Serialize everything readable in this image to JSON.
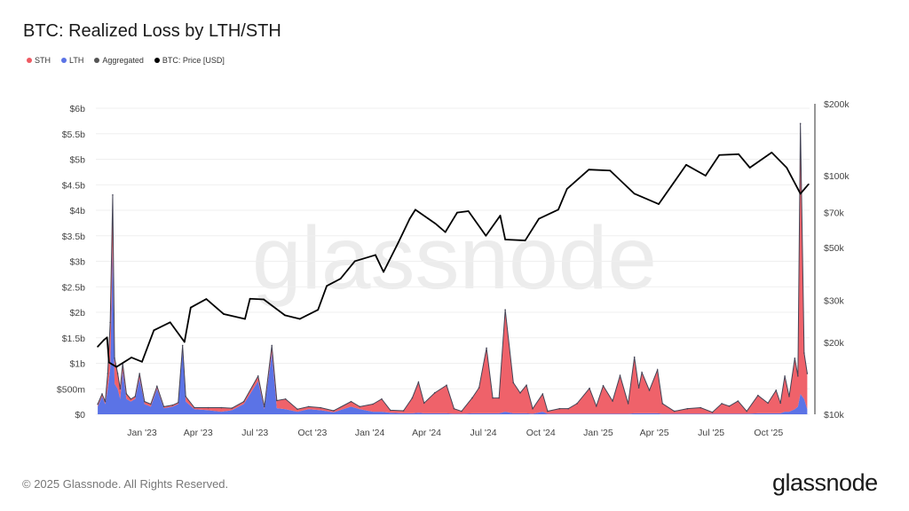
{
  "title": "BTC: Realized Loss by LTH/STH",
  "legend": [
    {
      "label": "STH",
      "color": "#ee5a62"
    },
    {
      "label": "LTH",
      "color": "#5b73e6"
    },
    {
      "label": "Aggregated",
      "color": "#555555"
    },
    {
      "label": "BTC: Price [USD]",
      "color": "#000000"
    }
  ],
  "watermark": "glassnode",
  "footer": "© 2025 Glassnode. All Rights Reserved.",
  "logo": "glassnode",
  "chart_data": {
    "type": "area",
    "title": "BTC: Realized Loss by LTH/STH",
    "y_left": {
      "ticks": [
        "$0",
        "$500m",
        "$1b",
        "$1.5b",
        "$2b",
        "$2.5b",
        "$3b",
        "$3.5b",
        "$4b",
        "$4.5b",
        "$5b",
        "$5.5b",
        "$6b"
      ],
      "unit": "USD billions",
      "range": [
        0,
        6
      ],
      "scale": "linear"
    },
    "y_right": {
      "ticks": [
        "$10k",
        "$20k",
        "$30k",
        "$50k",
        "$70k",
        "$100k",
        "$200k"
      ],
      "tick_values": [
        10000,
        20000,
        30000,
        50000,
        70000,
        100000,
        200000
      ],
      "range": [
        10000,
        200000
      ],
      "scale": "log"
    },
    "x_ticks": [
      {
        "label": "Jan '23",
        "date": "2023-01-01"
      },
      {
        "label": "Apr '23",
        "date": "2023-04-01"
      },
      {
        "label": "Jul '23",
        "date": "2023-07-01"
      },
      {
        "label": "Oct '23",
        "date": "2023-10-01"
      },
      {
        "label": "Jan '24",
        "date": "2024-01-01"
      },
      {
        "label": "Apr '24",
        "date": "2024-04-01"
      },
      {
        "label": "Jul '24",
        "date": "2024-07-01"
      },
      {
        "label": "Oct '24",
        "date": "2024-10-01"
      },
      {
        "label": "Jan '25",
        "date": "2025-01-01"
      },
      {
        "label": "Apr '25",
        "date": "2025-04-01"
      },
      {
        "label": "Jul '25",
        "date": "2025-07-01"
      },
      {
        "label": "Oct '25",
        "date": "2025-10-01"
      }
    ],
    "grid": true,
    "legend_position": "top-left",
    "loss_series": {
      "fields": [
        "date",
        "sth_billion",
        "lth_billion"
      ],
      "points": [
        [
          "2022-10-22",
          0.05,
          0.15
        ],
        [
          "2022-10-29",
          0.05,
          0.35
        ],
        [
          "2022-11-03",
          0.05,
          0.2
        ],
        [
          "2022-11-07",
          0.3,
          0.5
        ],
        [
          "2022-11-11",
          0.9,
          0.9
        ],
        [
          "2022-11-15",
          1.0,
          3.3
        ],
        [
          "2022-11-18",
          0.5,
          0.6
        ],
        [
          "2022-11-23",
          0.3,
          0.5
        ],
        [
          "2022-11-27",
          0.2,
          0.3
        ],
        [
          "2022-12-01",
          0.15,
          0.85
        ],
        [
          "2022-12-07",
          0.1,
          0.3
        ],
        [
          "2022-12-14",
          0.05,
          0.25
        ],
        [
          "2022-12-21",
          0.05,
          0.3
        ],
        [
          "2022-12-28",
          0.1,
          0.7
        ],
        [
          "2023-01-05",
          0.05,
          0.2
        ],
        [
          "2023-01-15",
          0.05,
          0.15
        ],
        [
          "2023-01-25",
          0.05,
          0.5
        ],
        [
          "2023-02-05",
          0.03,
          0.12
        ],
        [
          "2023-02-19",
          0.03,
          0.15
        ],
        [
          "2023-02-28",
          0.03,
          0.2
        ],
        [
          "2023-03-07",
          0.1,
          1.25
        ],
        [
          "2023-03-12",
          0.1,
          0.25
        ],
        [
          "2023-03-26",
          0.03,
          0.1
        ],
        [
          "2023-04-17",
          0.05,
          0.08
        ],
        [
          "2023-05-08",
          0.08,
          0.05
        ],
        [
          "2023-05-25",
          0.04,
          0.08
        ],
        [
          "2023-06-13",
          0.05,
          0.2
        ],
        [
          "2023-07-06",
          0.1,
          0.65
        ],
        [
          "2023-07-16",
          0.05,
          0.1
        ],
        [
          "2023-07-28",
          0.15,
          1.2
        ],
        [
          "2023-08-05",
          0.15,
          0.12
        ],
        [
          "2023-08-19",
          0.2,
          0.1
        ],
        [
          "2023-09-07",
          0.05,
          0.05
        ],
        [
          "2023-09-25",
          0.05,
          0.1
        ],
        [
          "2023-10-14",
          0.05,
          0.08
        ],
        [
          "2023-11-04",
          0.03,
          0.04
        ],
        [
          "2023-12-02",
          0.1,
          0.15
        ],
        [
          "2023-12-16",
          0.05,
          0.1
        ],
        [
          "2024-01-06",
          0.15,
          0.05
        ],
        [
          "2024-01-20",
          0.25,
          0.05
        ],
        [
          "2024-02-03",
          0.05,
          0.03
        ],
        [
          "2024-02-24",
          0.05,
          0.02
        ],
        [
          "2024-03-09",
          0.3,
          0.02
        ],
        [
          "2024-03-19",
          0.6,
          0.03
        ],
        [
          "2024-03-28",
          0.2,
          0.02
        ],
        [
          "2024-04-14",
          0.4,
          0.02
        ],
        [
          "2024-05-03",
          0.55,
          0.02
        ],
        [
          "2024-05-15",
          0.1,
          0.01
        ],
        [
          "2024-05-27",
          0.05,
          0.01
        ],
        [
          "2024-06-13",
          0.3,
          0.02
        ],
        [
          "2024-06-24",
          0.5,
          0.02
        ],
        [
          "2024-07-06",
          1.28,
          0.02
        ],
        [
          "2024-07-16",
          0.3,
          0.02
        ],
        [
          "2024-07-26",
          0.3,
          0.02
        ],
        [
          "2024-08-05",
          2.0,
          0.05
        ],
        [
          "2024-08-18",
          0.6,
          0.02
        ],
        [
          "2024-08-29",
          0.4,
          0.02
        ],
        [
          "2024-09-08",
          0.55,
          0.02
        ],
        [
          "2024-09-18",
          0.1,
          0.01
        ],
        [
          "2024-10-04",
          0.35,
          0.05
        ],
        [
          "2024-10-12",
          0.05,
          0.01
        ],
        [
          "2024-10-31",
          0.1,
          0.01
        ],
        [
          "2024-11-14",
          0.1,
          0.01
        ],
        [
          "2024-11-28",
          0.2,
          0.01
        ],
        [
          "2024-12-18",
          0.5,
          0.01
        ],
        [
          "2024-12-29",
          0.15,
          0.01
        ],
        [
          "2025-01-09",
          0.55,
          0.01
        ],
        [
          "2025-01-24",
          0.25,
          0.01
        ],
        [
          "2025-02-05",
          0.75,
          0.01
        ],
        [
          "2025-02-18",
          0.2,
          0.01
        ],
        [
          "2025-02-28",
          1.1,
          0.02
        ],
        [
          "2025-03-07",
          0.5,
          0.02
        ],
        [
          "2025-03-12",
          0.8,
          0.02
        ],
        [
          "2025-03-24",
          0.45,
          0.02
        ],
        [
          "2025-04-06",
          0.85,
          0.02
        ],
        [
          "2025-04-14",
          0.2,
          0.01
        ],
        [
          "2025-05-03",
          0.05,
          0.01
        ],
        [
          "2025-05-24",
          0.1,
          0.01
        ],
        [
          "2025-06-14",
          0.12,
          0.01
        ],
        [
          "2025-07-03",
          0.03,
          0.01
        ],
        [
          "2025-07-18",
          0.2,
          0.01
        ],
        [
          "2025-07-30",
          0.15,
          0.01
        ],
        [
          "2025-08-13",
          0.25,
          0.01
        ],
        [
          "2025-08-27",
          0.05,
          0.01
        ],
        [
          "2025-09-14",
          0.35,
          0.02
        ],
        [
          "2025-09-30",
          0.2,
          0.02
        ],
        [
          "2025-10-13",
          0.45,
          0.02
        ],
        [
          "2025-10-20",
          0.2,
          0.02
        ],
        [
          "2025-10-27",
          0.7,
          0.05
        ],
        [
          "2025-11-03",
          0.3,
          0.05
        ],
        [
          "2025-11-12",
          1.0,
          0.1
        ],
        [
          "2025-11-17",
          0.6,
          0.15
        ],
        [
          "2025-11-21",
          5.3,
          0.4
        ],
        [
          "2025-11-27",
          0.9,
          0.3
        ],
        [
          "2025-12-02",
          0.7,
          0.1
        ]
      ]
    },
    "price_series": {
      "name": "BTC: Price [USD]",
      "points": [
        [
          "2022-10-22",
          19200
        ],
        [
          "2022-11-01",
          20500
        ],
        [
          "2022-11-06",
          21000
        ],
        [
          "2022-11-09",
          16500
        ],
        [
          "2022-11-21",
          15800
        ],
        [
          "2022-12-15",
          17300
        ],
        [
          "2023-01-01",
          16600
        ],
        [
          "2023-01-20",
          22500
        ],
        [
          "2023-02-15",
          24300
        ],
        [
          "2023-03-10",
          20100
        ],
        [
          "2023-03-20",
          28000
        ],
        [
          "2023-04-14",
          30400
        ],
        [
          "2023-05-12",
          26300
        ],
        [
          "2023-06-15",
          25100
        ],
        [
          "2023-06-23",
          30500
        ],
        [
          "2023-07-15",
          30300
        ],
        [
          "2023-08-18",
          26000
        ],
        [
          "2023-09-11",
          25100
        ],
        [
          "2023-10-10",
          27400
        ],
        [
          "2023-10-24",
          34500
        ],
        [
          "2023-11-15",
          37000
        ],
        [
          "2023-12-08",
          43800
        ],
        [
          "2024-01-10",
          46500
        ],
        [
          "2024-01-23",
          39500
        ],
        [
          "2024-02-15",
          52000
        ],
        [
          "2024-03-05",
          66000
        ],
        [
          "2024-03-14",
          72000
        ],
        [
          "2024-04-15",
          63000
        ],
        [
          "2024-05-01",
          58000
        ],
        [
          "2024-05-20",
          70000
        ],
        [
          "2024-06-07",
          71000
        ],
        [
          "2024-07-05",
          56000
        ],
        [
          "2024-07-28",
          68000
        ],
        [
          "2024-08-05",
          54000
        ],
        [
          "2024-09-06",
          53500
        ],
        [
          "2024-09-28",
          66000
        ],
        [
          "2024-10-29",
          72000
        ],
        [
          "2024-11-12",
          88000
        ],
        [
          "2024-12-17",
          106000
        ],
        [
          "2025-01-20",
          105000
        ],
        [
          "2025-02-28",
          84000
        ],
        [
          "2025-04-08",
          76000
        ],
        [
          "2025-05-22",
          111000
        ],
        [
          "2025-06-22",
          100000
        ],
        [
          "2025-07-14",
          122000
        ],
        [
          "2025-08-14",
          123000
        ],
        [
          "2025-09-01",
          108000
        ],
        [
          "2025-10-06",
          125000
        ],
        [
          "2025-10-30",
          108000
        ],
        [
          "2025-11-21",
          84000
        ],
        [
          "2025-12-04",
          92000
        ]
      ]
    }
  }
}
